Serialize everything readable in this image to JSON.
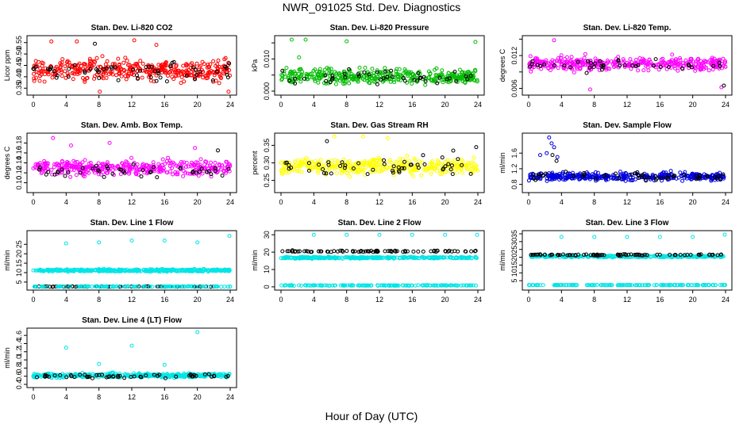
{
  "figure": {
    "title": "NWR_091025  Std. Dev. Diagnostics",
    "xlabel": "Hour of Day (UTC)"
  },
  "chart_data": [
    {
      "type": "scatter",
      "title": "Stan. Dev. Li-820 CO2",
      "ylabel": "Licor ppm",
      "xlim": [
        0,
        24
      ],
      "xticks": [
        0,
        4,
        8,
        12,
        16,
        20,
        24
      ],
      "ylim": [
        0.33,
        0.57
      ],
      "yticks": [
        0.35,
        0.4,
        0.45,
        0.5,
        0.55
      ],
      "ytick_labels": [
        "0.35",
        "0.40",
        "0.45",
        "0.50",
        "0.55"
      ],
      "series": [
        {
          "color": "#ff0000",
          "x_range": [
            0,
            24
          ],
          "y_mean": 0.43,
          "y_spread": 0.045,
          "count": 380,
          "outliers": [
            [
              2.2,
              0.555
            ],
            [
              5.3,
              0.555
            ],
            [
              8.1,
              0.335
            ],
            [
              15.0,
              0.54
            ],
            [
              12.3,
              0.56
            ],
            [
              23.8,
              0.335
            ]
          ]
        },
        {
          "color": "#000000",
          "x_range": [
            0,
            24
          ],
          "y_mean": 0.425,
          "y_spread": 0.04,
          "count": 55,
          "outliers": [
            [
              7.5,
              0.545
            ],
            [
              16.3,
              0.38
            ]
          ]
        }
      ]
    },
    {
      "type": "scatter",
      "title": "Stan. Dev. Li-820 Pressure",
      "ylabel": "kPa",
      "xlim": [
        0,
        24
      ],
      "xticks": [
        0,
        4,
        8,
        12,
        16,
        20,
        24
      ],
      "ylim": [
        -0.0005,
        0.0165
      ],
      "yticks": [
        0.0,
        0.005,
        0.01,
        0.015
      ],
      "ytick_labels": [
        "0.000",
        "",
        "0.010",
        ""
      ],
      "series": [
        {
          "color": "#00bb00",
          "x_range": [
            0,
            24
          ],
          "y_mean": 0.0045,
          "y_spread": 0.0022,
          "count": 380,
          "outliers": [
            [
              1.3,
              0.016
            ],
            [
              3.0,
              0.016
            ],
            [
              8.0,
              0.0155
            ],
            [
              23.7,
              0.0153
            ],
            [
              2.2,
              0.0105
            ]
          ]
        },
        {
          "color": "#000000",
          "x_range": [
            0,
            24
          ],
          "y_mean": 0.0045,
          "y_spread": 0.002,
          "count": 45,
          "outliers": []
        }
      ]
    },
    {
      "type": "scatter",
      "title": "Stan. Dev. Li-820 Temp.",
      "ylabel": "degrees C",
      "xlim": [
        0,
        24
      ],
      "xticks": [
        0,
        4,
        8,
        12,
        16,
        20,
        24
      ],
      "ylim": [
        0.0052,
        0.0152
      ],
      "yticks": [
        0.006,
        0.009,
        0.012,
        0.015
      ],
      "ytick_labels": [
        "0.006",
        "",
        "0.012",
        ""
      ],
      "series": [
        {
          "color": "#ff00ff",
          "x_range": [
            0,
            24
          ],
          "y_mean": 0.0105,
          "y_spread": 0.0012,
          "count": 380,
          "outliers": [
            [
              3.1,
              0.0148
            ],
            [
              7.5,
              0.0058
            ],
            [
              23.5,
              0.0062
            ]
          ]
        },
        {
          "color": "#000000",
          "x_range": [
            0,
            24
          ],
          "y_mean": 0.0102,
          "y_spread": 0.0011,
          "count": 40,
          "outliers": [
            [
              23.8,
              0.0065
            ]
          ]
        }
      ]
    },
    {
      "type": "scatter",
      "title": "Stan. Dev. Amb. Box Temp.",
      "ylabel": "degrees C",
      "xlim": [
        0,
        24
      ],
      "xticks": [
        0,
        4,
        8,
        12,
        16,
        20,
        24
      ],
      "ylim": [
        0.085,
        0.195
      ],
      "yticks": [
        0.1,
        0.12,
        0.14,
        0.16,
        0.18
      ],
      "ytick_labels": [
        "0.10",
        "0.12",
        "0.14",
        "0.16",
        "0.18"
      ],
      "series": [
        {
          "color": "#ff00ff",
          "x_range": [
            0,
            24
          ],
          "y_mean": 0.13,
          "y_spread": 0.014,
          "count": 380,
          "outliers": [
            [
              2.4,
              0.19
            ],
            [
              9.3,
              0.18
            ],
            [
              4.6,
              0.175
            ],
            [
              19.7,
              0.17
            ]
          ]
        },
        {
          "color": "#000000",
          "x_range": [
            0,
            24
          ],
          "y_mean": 0.125,
          "y_spread": 0.012,
          "count": 45,
          "outliers": [
            [
              22.5,
              0.165
            ]
          ]
        }
      ]
    },
    {
      "type": "scatter",
      "title": "Stan. Dev. Gas Stream RH",
      "ylabel": "percent",
      "xlim": [
        0,
        24
      ],
      "xticks": [
        0,
        4,
        8,
        12,
        16,
        20,
        24
      ],
      "ylim": [
        0.222,
        0.378
      ],
      "yticks": [
        0.25,
        0.3,
        0.35
      ],
      "ytick_labels": [
        "0.25",
        "0.30",
        "0.35"
      ],
      "series": [
        {
          "color": "#ffff00",
          "x_range": [
            0,
            24
          ],
          "y_mean": 0.29,
          "y_spread": 0.022,
          "count": 380,
          "outliers": [
            [
              6.5,
              0.375
            ],
            [
              10.0,
              0.375
            ],
            [
              13.0,
              0.37
            ]
          ]
        },
        {
          "color": "#000000",
          "x_range": [
            0,
            24
          ],
          "y_mean": 0.29,
          "y_spread": 0.025,
          "count": 50,
          "outliers": [
            [
              5.6,
              0.362
            ],
            [
              23.8,
              0.345
            ],
            [
              21.0,
              0.335
            ]
          ]
        }
      ]
    },
    {
      "type": "scatter",
      "title": "Stan. Dev. Sample Flow",
      "ylabel": "ml/min",
      "xlim": [
        0,
        24
      ],
      "xticks": [
        0,
        4,
        8,
        12,
        16,
        20,
        24
      ],
      "ylim": [
        0.65,
        2.05
      ],
      "yticks": [
        0.8,
        1.2,
        1.6
      ],
      "ytick_labels": [
        "0.8",
        "1.2",
        "1.6"
      ],
      "series": [
        {
          "color": "#0000dd",
          "x_range": [
            0,
            24
          ],
          "y_mean": 1.0,
          "y_spread": 0.1,
          "count": 380,
          "outliers": [
            [
              2.5,
              2.0
            ],
            [
              2.8,
              1.85
            ],
            [
              3.1,
              1.75
            ],
            [
              1.4,
              1.55
            ],
            [
              2.2,
              1.6
            ],
            [
              3.5,
              1.5
            ]
          ]
        },
        {
          "color": "#000000",
          "x_range": [
            0,
            24
          ],
          "y_mean": 1.0,
          "y_spread": 0.1,
          "count": 50,
          "outliers": [
            [
              2.9,
              1.55
            ],
            [
              3.4,
              1.4
            ]
          ]
        }
      ]
    },
    {
      "type": "scatter",
      "title": "Stan. Dev. Line 1 Flow",
      "ylabel": "ml/min",
      "xlim": [
        0,
        24
      ],
      "xticks": [
        0,
        4,
        8,
        12,
        16,
        20,
        24
      ],
      "ylim": [
        2,
        31
      ],
      "yticks": [
        5,
        10,
        15,
        20,
        25
      ],
      "ytick_labels": [
        "5",
        "10",
        "15",
        "20",
        "25"
      ],
      "series": [
        {
          "color": "#00e5e5",
          "x_range": [
            0,
            24
          ],
          "y_mean": 11.2,
          "y_spread": 0.6,
          "count": 380,
          "outliers": [
            [
              4.0,
              25.5
            ],
            [
              8.0,
              26.0
            ],
            [
              12.0,
              27.0
            ],
            [
              16.0,
              27.0
            ],
            [
              20.0,
              26.0
            ],
            [
              23.9,
              29.5
            ]
          ]
        },
        {
          "color": "#000000",
          "x_range": [
            0,
            24
          ],
          "y_mean": 2.6,
          "y_spread": 0.15,
          "count": 60,
          "outliers": []
        },
        {
          "color": "#00e5e5",
          "x_range": [
            0,
            24
          ],
          "y_mean": 2.6,
          "y_spread": 0.15,
          "count": 120,
          "outliers": []
        }
      ]
    },
    {
      "type": "scatter",
      "title": "Stan. Dev. Line 2 Flow",
      "ylabel": "ml/min",
      "xlim": [
        0,
        24
      ],
      "xticks": [
        0,
        4,
        8,
        12,
        16,
        20,
        24
      ],
      "ylim": [
        -0.5,
        31
      ],
      "yticks": [
        0,
        10,
        20,
        30
      ],
      "ytick_labels": [
        "0",
        "10",
        "20",
        "30"
      ],
      "series": [
        {
          "color": "#00e5e5",
          "x_range": [
            0,
            24
          ],
          "y_mean": 16.8,
          "y_spread": 0.5,
          "count": 300,
          "outliers": [
            [
              4.0,
              30.0
            ],
            [
              8.0,
              30.0
            ],
            [
              12.0,
              30.0
            ],
            [
              16.0,
              30.0
            ],
            [
              20.0,
              30.0
            ],
            [
              23.9,
              30.0
            ]
          ]
        },
        {
          "color": "#000000",
          "x_range": [
            0,
            24
          ],
          "y_mean": 20.5,
          "y_spread": 0.4,
          "count": 80,
          "outliers": []
        },
        {
          "color": "#00e5e5",
          "x_range": [
            0,
            24
          ],
          "y_mean": 0.8,
          "y_spread": 0.15,
          "count": 150,
          "outliers": []
        }
      ]
    },
    {
      "type": "scatter",
      "title": "Stan. Dev. Line 3 Flow",
      "ylabel": "ml/min",
      "xlim": [
        0,
        24
      ],
      "xticks": [
        0,
        4,
        8,
        12,
        16,
        20,
        24
      ],
      "ylim": [
        0.5,
        35.5
      ],
      "yticks": [
        5,
        10,
        15,
        20,
        25,
        30,
        35
      ],
      "ytick_labels": [
        "5",
        "10",
        "15",
        "20",
        "25",
        "30",
        "35"
      ],
      "series": [
        {
          "color": "#00e5e5",
          "x_range": [
            0,
            24
          ],
          "y_mean": 20.5,
          "y_spread": 0.6,
          "count": 300,
          "outliers": [
            [
              4.0,
              33.0
            ],
            [
              8.0,
              33.0
            ],
            [
              12.0,
              33.0
            ],
            [
              16.0,
              33.0
            ],
            [
              20.0,
              33.0
            ],
            [
              23.9,
              34.5
            ]
          ]
        },
        {
          "color": "#000000",
          "x_range": [
            0,
            24
          ],
          "y_mean": 21.5,
          "y_spread": 0.4,
          "count": 80,
          "outliers": []
        },
        {
          "color": "#00e5e5",
          "x_range": [
            0,
            24
          ],
          "y_mean": 2.2,
          "y_spread": 0.12,
          "count": 150,
          "outliers": []
        }
      ]
    },
    {
      "type": "scatter",
      "title": "Stan. Dev. Line 4 (LT) Flow",
      "ylabel": "ml/min",
      "xlim": [
        0,
        24
      ],
      "xticks": [
        0,
        4,
        8,
        12,
        16,
        20,
        24
      ],
      "ylim": [
        0.38,
        1.72
      ],
      "yticks": [
        0.4,
        0.6,
        0.8,
        1.0,
        1.2,
        1.4,
        1.6
      ],
      "ytick_labels": [
        "0.4",
        "0.6",
        "0.8",
        "1.0",
        "1.2",
        "1.4",
        "1.6"
      ],
      "series": [
        {
          "color": "#00e5e5",
          "x_range": [
            0,
            24
          ],
          "y_mean": 0.62,
          "y_spread": 0.05,
          "count": 380,
          "outliers": [
            [
              4.0,
              1.3
            ],
            [
              12.0,
              1.35
            ],
            [
              20.0,
              1.68
            ],
            [
              8.0,
              0.9
            ],
            [
              16.0,
              0.88
            ]
          ]
        },
        {
          "color": "#000000",
          "x_range": [
            0,
            24
          ],
          "y_mean": 0.6,
          "y_spread": 0.05,
          "count": 55,
          "outliers": []
        }
      ]
    }
  ]
}
